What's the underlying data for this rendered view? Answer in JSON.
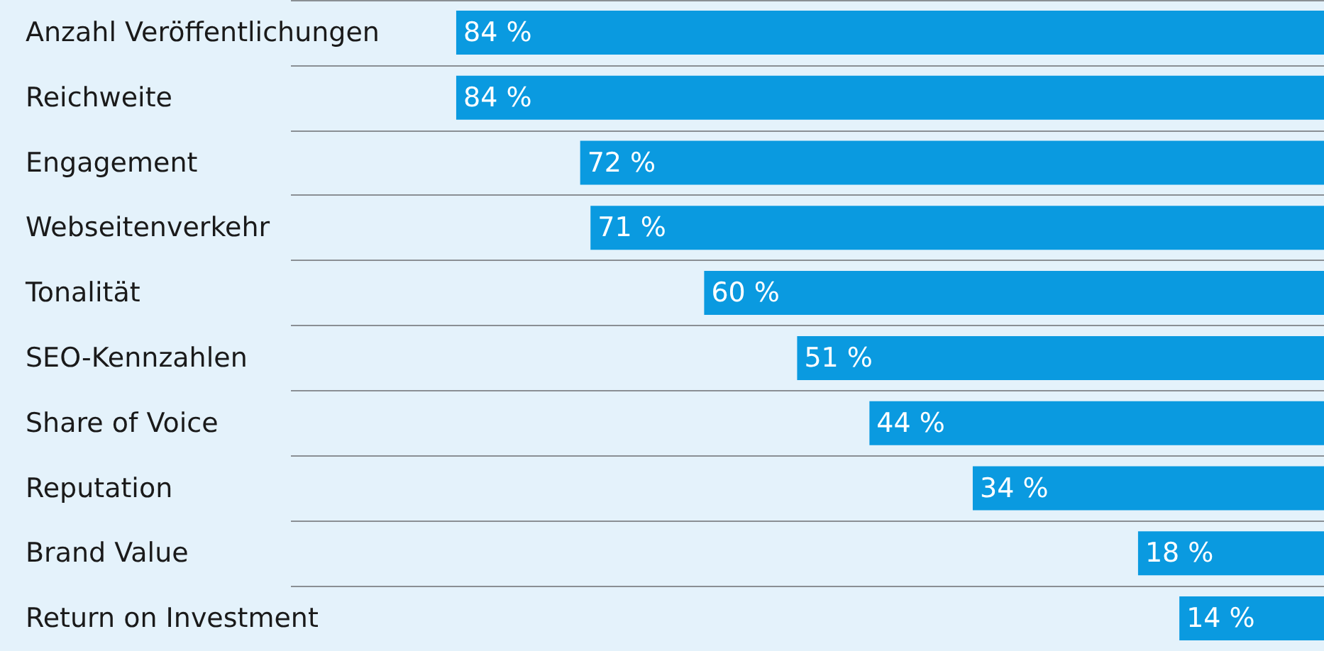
{
  "chart_data": {
    "type": "bar",
    "orientation": "horizontal",
    "categories": [
      "Anzahl Veröffentlichungen",
      "Reichweite",
      "Engagement",
      "Webseitenverkehr",
      "Tonalität",
      "SEO-Kennzahlen",
      "Share of Voice",
      "Reputation",
      "Brand Value",
      "Return on Investment"
    ],
    "values": [
      84,
      84,
      72,
      71,
      60,
      51,
      44,
      34,
      18,
      14
    ],
    "value_labels": [
      "84 %",
      "84 %",
      "72 %",
      "71 %",
      "60 %",
      "51 %",
      "44 %",
      "34 %",
      "18 %",
      "14 %"
    ],
    "color": "#0a9ae0",
    "xlim": [
      100,
      0
    ],
    "tick_labels": "y",
    "grid": "y"
  }
}
